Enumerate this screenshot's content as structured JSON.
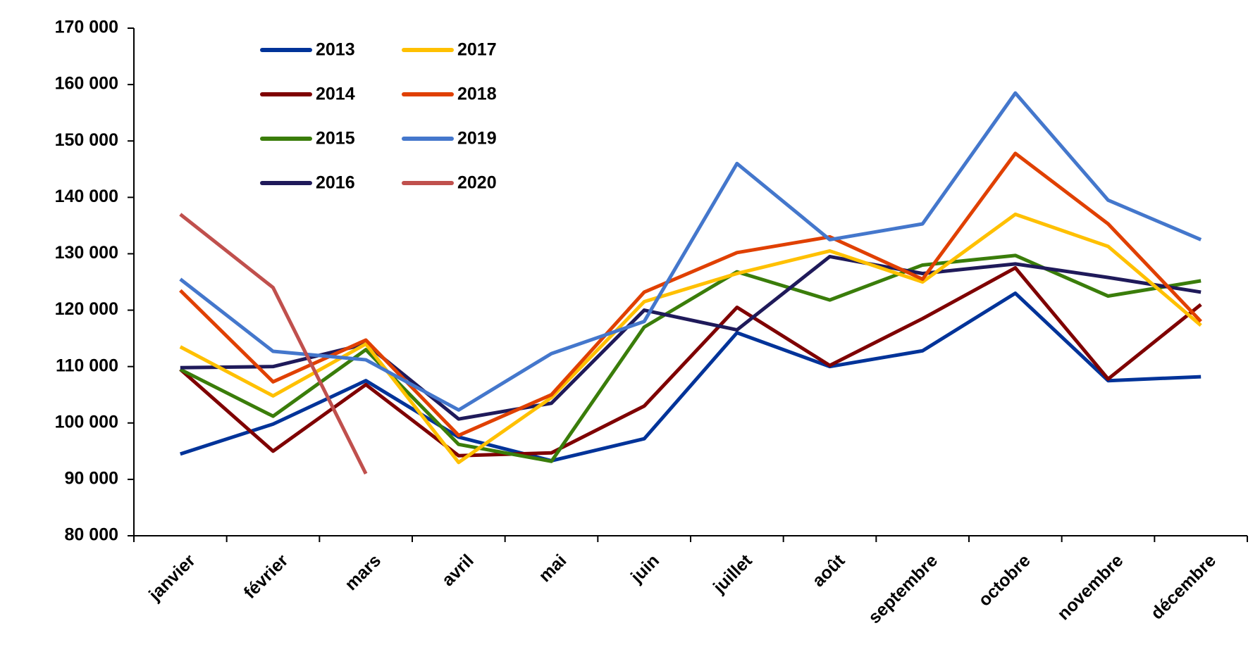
{
  "chart_data": {
    "type": "line",
    "categories": [
      "janvier",
      "février",
      "mars",
      "avril",
      "mai",
      "juin",
      "juillet",
      "août",
      "septembre",
      "octobre",
      "novembre",
      "décembre"
    ],
    "series": [
      {
        "name": "2013",
        "color": "#003399",
        "values": [
          94500,
          99800,
          107500,
          97500,
          93300,
          97200,
          116000,
          110000,
          112800,
          123000,
          107500,
          108200
        ]
      },
      {
        "name": "2014",
        "color": "#7f0000",
        "values": [
          109500,
          95000,
          106800,
          94200,
          94700,
          103000,
          120500,
          110200,
          118500,
          127500,
          107800,
          121000
        ]
      },
      {
        "name": "2015",
        "color": "#3a7d0a",
        "values": [
          109500,
          101200,
          113000,
          96200,
          93200,
          117000,
          126800,
          121800,
          128000,
          129700,
          122500,
          125200
        ]
      },
      {
        "name": "2016",
        "color": "#1f1a5a",
        "values": [
          109800,
          110000,
          114000,
          100700,
          103500,
          120000,
          116500,
          129500,
          126500,
          128200,
          125800,
          123200
        ]
      },
      {
        "name": "2017",
        "color": "#ffc000",
        "values": [
          113500,
          104800,
          114000,
          93000,
          104500,
          121500,
          126500,
          130500,
          125000,
          137000,
          131300,
          117300
        ]
      },
      {
        "name": "2018",
        "color": "#e04000",
        "values": [
          123500,
          107300,
          114700,
          97800,
          105000,
          123200,
          130200,
          133000,
          125500,
          147800,
          135300,
          118000
        ]
      },
      {
        "name": "2019",
        "color": "#4477cc",
        "values": [
          125500,
          112700,
          111200,
          102300,
          112300,
          118000,
          146000,
          132500,
          135300,
          158500,
          139500,
          132500
        ]
      },
      {
        "name": "2020",
        "color": "#c0504d",
        "values": [
          137000,
          124000,
          91000,
          null,
          null,
          null,
          null,
          null,
          null,
          null,
          null,
          null
        ]
      }
    ],
    "ylim": [
      80000,
      170000
    ],
    "yticks": [
      {
        "value": 80000,
        "label": "80 000"
      },
      {
        "value": 90000,
        "label": "90 000"
      },
      {
        "value": 100000,
        "label": "100 000"
      },
      {
        "value": 110000,
        "label": "110 000"
      },
      {
        "value": 120000,
        "label": "120 000"
      },
      {
        "value": 130000,
        "label": "130 000"
      },
      {
        "value": 140000,
        "label": "140 000"
      },
      {
        "value": 150000,
        "label": "150 000"
      },
      {
        "value": 160000,
        "label": "160 000"
      },
      {
        "value": 170000,
        "label": "170 000"
      }
    ],
    "grid": false,
    "legend": "upper left"
  }
}
